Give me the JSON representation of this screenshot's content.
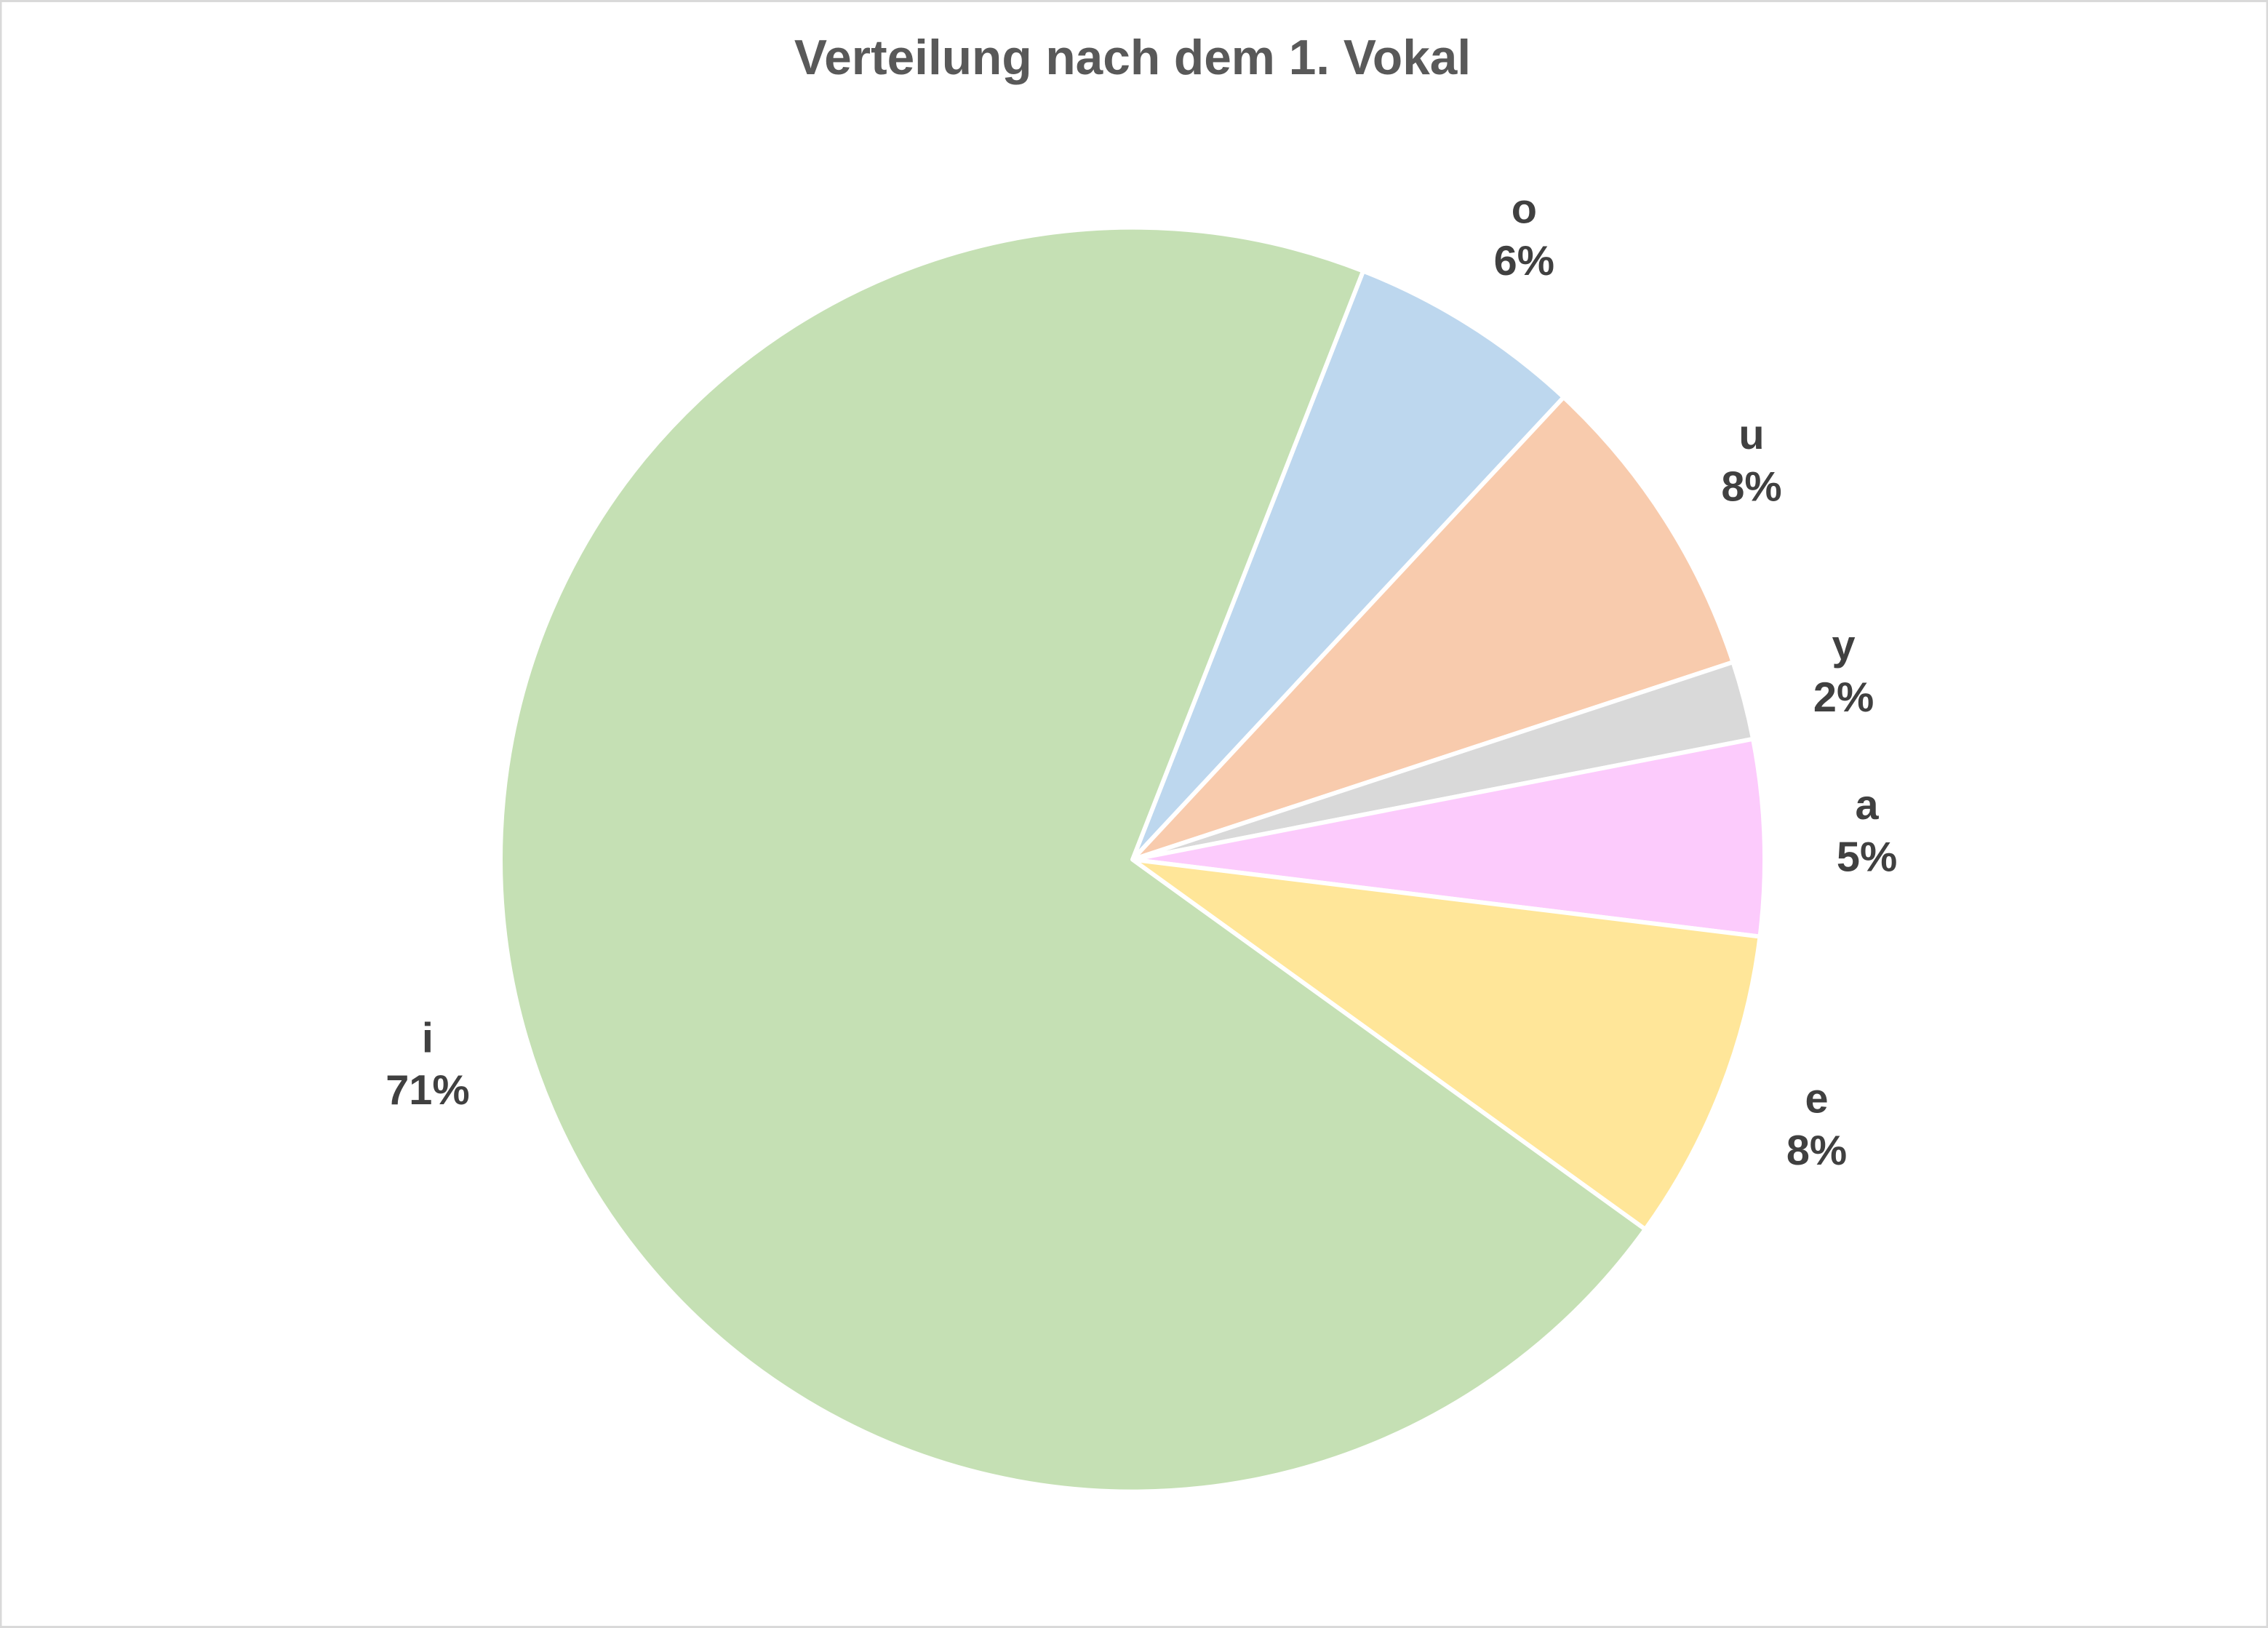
{
  "chart_data": {
    "type": "pie",
    "title": "Verteilung nach dem 1. Vokal",
    "categories": [
      "o",
      "u",
      "y",
      "a",
      "e",
      "i"
    ],
    "values": [
      6,
      8,
      2,
      5,
      8,
      71
    ],
    "value_labels": [
      "6%",
      "8%",
      "2%",
      "5%",
      "8%",
      "71%"
    ],
    "colors": [
      "#bdd7ee",
      "#f8cbad",
      "#d9d9d9",
      "#fccbfc",
      "#ffe699",
      "#c5e0b4"
    ]
  }
}
